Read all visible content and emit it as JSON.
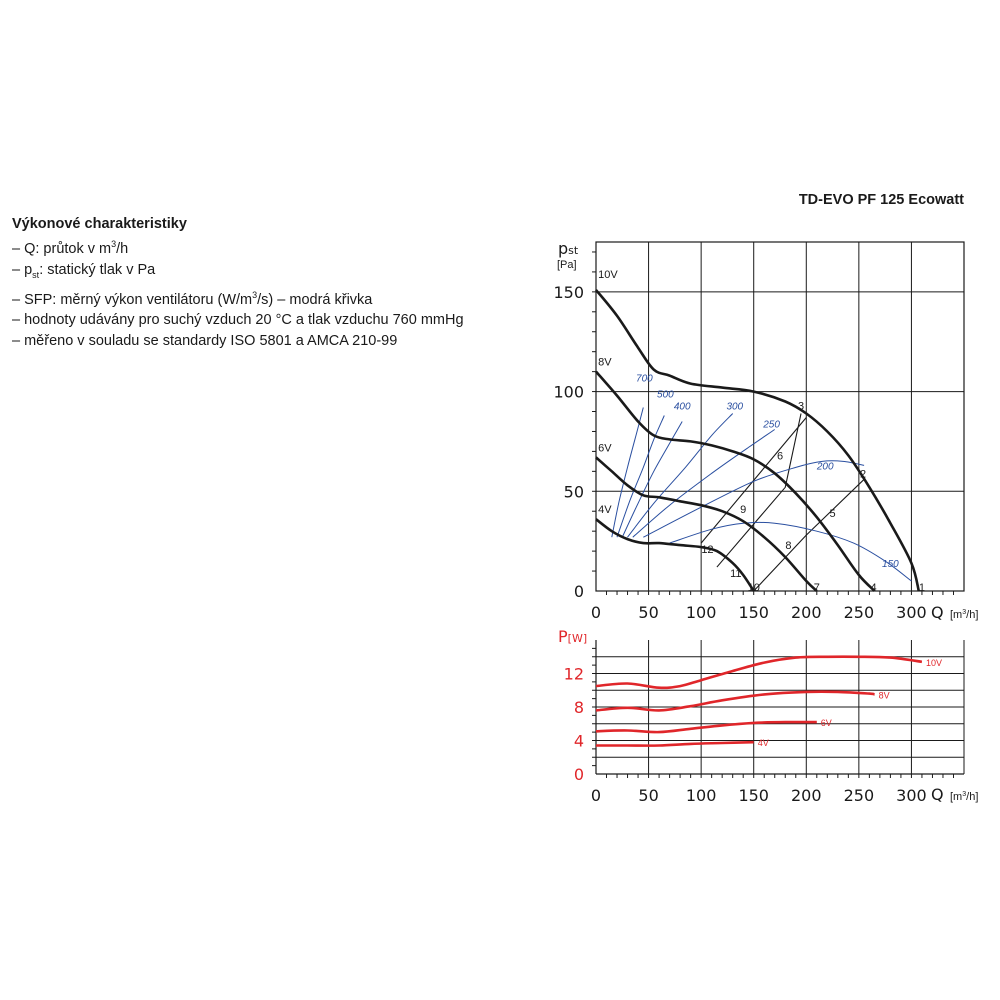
{
  "header": {
    "model": "TD-EVO PF 125 Ecowatt"
  },
  "spec": {
    "title": "Výkonové charakteristiky",
    "q_prefix": "– Q: průtok v m",
    "q_sup": "3",
    "q_suffix": "/h",
    "p_prefix": "– p",
    "p_sub": "st",
    "p_suffix": ": statický tlak v Pa",
    "sfp_prefix": "– SFP: měrný výkon ventilátoru (W/m",
    "sfp_sup": "3",
    "sfp_suffix": "/s) – modrá křivka",
    "line4": "– hodnoty udávány pro suchý vzduch 20 °C a tlak vzduchu 760 mmHg",
    "line5": "– měřeno v souladu se standardy ISO 5801 a AMCA 210-99"
  },
  "chart_data": [
    {
      "type": "line",
      "ylabel_main": "p",
      "ylabel_sub": "st",
      "yunit": "[Pa]",
      "xlabel": "Q",
      "xunit_prefix": "[m",
      "xunit_sup": "3",
      "xunit_suffix": "/h]",
      "xlim": [
        0,
        350
      ],
      "ylim": [
        0,
        175
      ],
      "xticks": [
        "0",
        "50",
        "100",
        "150",
        "200",
        "250",
        "300"
      ],
      "yticks": [
        "0",
        "50",
        "100",
        "150"
      ],
      "grid": true,
      "series": [
        {
          "name": "10V",
          "color": "#1a1a1a",
          "x": [
            0,
            20,
            40,
            55,
            70,
            90,
            120,
            150,
            180,
            200,
            220,
            240,
            260,
            280,
            300,
            307
          ],
          "y": [
            151,
            138,
            122,
            111,
            108,
            104,
            102,
            100,
            95,
            89,
            80,
            68,
            52,
            34,
            14,
            0
          ]
        },
        {
          "name": "8V",
          "color": "#1a1a1a",
          "x": [
            0,
            20,
            40,
            55,
            70,
            90,
            110,
            130,
            150,
            170,
            190,
            210,
            230,
            250,
            265
          ],
          "y": [
            110,
            98,
            85,
            78,
            76,
            75,
            73,
            70,
            66,
            59,
            49,
            37,
            23,
            8,
            0
          ]
        },
        {
          "name": "6V",
          "color": "#1a1a1a",
          "x": [
            0,
            15,
            30,
            45,
            60,
            80,
            100,
            120,
            140,
            160,
            180,
            200,
            210
          ],
          "y": [
            67,
            60,
            53,
            48,
            47,
            45,
            43,
            40,
            35,
            27,
            17,
            5,
            0
          ]
        },
        {
          "name": "4V",
          "color": "#1a1a1a",
          "x": [
            0,
            15,
            30,
            45,
            60,
            80,
            100,
            115,
            130,
            140,
            150
          ],
          "y": [
            36,
            30,
            26,
            24,
            24,
            23,
            22,
            20,
            14,
            8,
            0
          ]
        }
      ],
      "system_lines": [
        {
          "x": [
            150,
            200,
            255
          ],
          "y": [
            0,
            28,
            56
          ]
        },
        {
          "x": [
            115,
            180,
            195
          ],
          "y": [
            12,
            52,
            89
          ]
        },
        {
          "x": [
            100,
            200
          ],
          "y": [
            24,
            87
          ]
        }
      ],
      "point_labels": [
        {
          "text": "1",
          "x": 310,
          "y": 2
        },
        {
          "text": "2",
          "x": 254,
          "y": 59
        },
        {
          "text": "3",
          "x": 195,
          "y": 93
        },
        {
          "text": "4",
          "x": 264,
          "y": 2
        },
        {
          "text": "5",
          "x": 225,
          "y": 39
        },
        {
          "text": "6",
          "x": 175,
          "y": 68
        },
        {
          "text": "7",
          "x": 210,
          "y": 2
        },
        {
          "text": "8",
          "x": 183,
          "y": 23
        },
        {
          "text": "9",
          "x": 140,
          "y": 41
        },
        {
          "text": "10",
          "x": 150,
          "y": 2
        },
        {
          "text": "11",
          "x": 133,
          "y": 9
        },
        {
          "text": "12",
          "x": 106,
          "y": 21
        }
      ],
      "series_labels": [
        {
          "text": "10V",
          "x": 2,
          "y": 157
        },
        {
          "text": "8V",
          "x": 2,
          "y": 113
        },
        {
          "text": "6V",
          "x": 2,
          "y": 70
        },
        {
          "text": "4V",
          "x": 2,
          "y": 39
        }
      ],
      "sfp_curves": [
        {
          "label": "700",
          "color": "#2a4fa0",
          "x": [
            15,
            22,
            30,
            38,
            45
          ],
          "y": [
            27,
            45,
            62,
            78,
            92
          ],
          "label_x": 46,
          "label_y": 105
        },
        {
          "label": "500",
          "color": "#2a4fa0",
          "x": [
            20,
            32,
            45,
            55,
            65
          ],
          "y": [
            27,
            45,
            62,
            76,
            88
          ],
          "label_x": 66,
          "label_y": 97
        },
        {
          "label": "400",
          "color": "#2a4fa0",
          "x": [
            25,
            40,
            55,
            70,
            82
          ],
          "y": [
            27,
            44,
            60,
            74,
            85
          ],
          "label_x": 82,
          "label_y": 91
        },
        {
          "label": "300",
          "color": "#2a4fa0",
          "x": [
            30,
            55,
            85,
            110,
            130
          ],
          "y": [
            27,
            44,
            62,
            78,
            89
          ],
          "label_x": 132,
          "label_y": 91
        },
        {
          "label": "250",
          "color": "#2a4fa0",
          "x": [
            35,
            70,
            110,
            145,
            170
          ],
          "y": [
            27,
            43,
            59,
            72,
            81
          ],
          "label_x": 167,
          "label_y": 82
        },
        {
          "label": "200",
          "color": "#2a4fa0",
          "x": [
            45,
            100,
            150,
            190,
            215,
            235,
            255
          ],
          "y": [
            27,
            42,
            55,
            62,
            65,
            65,
            63
          ],
          "label_x": 218,
          "label_y": 61
        },
        {
          "label": "150",
          "color": "#2a4fa0",
          "x": [
            70,
            110,
            140,
            170,
            210,
            245,
            275,
            300
          ],
          "y": [
            24,
            31,
            34,
            34,
            30,
            24,
            15,
            5
          ],
          "label_x": 280,
          "label_y": 12
        }
      ]
    },
    {
      "type": "line",
      "ylabel_main": "P",
      "yunit": "[W]",
      "xlabel": "Q",
      "xunit_prefix": "[m",
      "xunit_sup": "3",
      "xunit_suffix": "/h]",
      "xlim": [
        0,
        350
      ],
      "ylim": [
        0,
        16
      ],
      "xticks": [
        "0",
        "50",
        "100",
        "150",
        "200",
        "250",
        "300"
      ],
      "yticks": [
        "0",
        "4",
        "8",
        "12"
      ],
      "grid": true,
      "series": [
        {
          "name": "10V",
          "color": "#e0262a",
          "x": [
            0,
            30,
            60,
            80,
            100,
            130,
            160,
            190,
            220,
            250,
            280,
            310
          ],
          "y": [
            10.5,
            10.8,
            10.3,
            10.5,
            11.2,
            12.3,
            13.3,
            13.9,
            14.0,
            14.0,
            13.9,
            13.4
          ]
        },
        {
          "name": "8V",
          "color": "#e0262a",
          "x": [
            0,
            30,
            60,
            90,
            120,
            160,
            200,
            230,
            260,
            265
          ],
          "y": [
            7.6,
            7.9,
            7.6,
            8.1,
            8.8,
            9.5,
            9.8,
            9.8,
            9.6,
            9.5
          ]
        },
        {
          "name": "6V",
          "color": "#e0262a",
          "x": [
            0,
            30,
            60,
            90,
            120,
            150,
            180,
            210
          ],
          "y": [
            5.1,
            5.2,
            5.0,
            5.4,
            5.8,
            6.1,
            6.2,
            6.2
          ]
        },
        {
          "name": "4V",
          "color": "#e0262a",
          "x": [
            0,
            30,
            60,
            90,
            120,
            150
          ],
          "y": [
            3.4,
            3.4,
            3.4,
            3.6,
            3.7,
            3.8
          ]
        }
      ]
    }
  ]
}
